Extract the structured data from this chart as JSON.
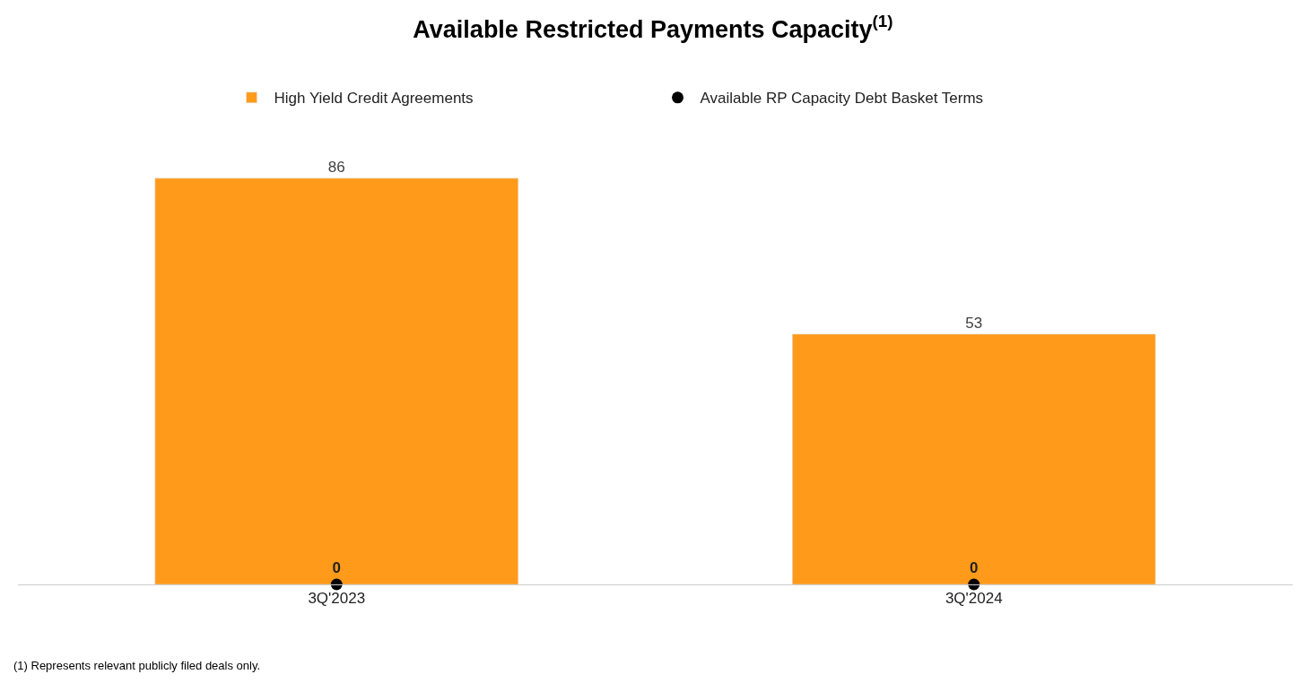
{
  "chart_data": {
    "type": "bar",
    "title": "Available Restricted Payments Capacity$^{(1)}$",
    "categories": [
      "3Q'2023",
      "3Q'2024"
    ],
    "series": [
      {
        "name": "High Yield Credit Agreements",
        "color": "#ff9a1a",
        "values": [
          86,
          53
        ]
      },
      {
        "name": "Available RP Capacity Debt Basket Terms",
        "type": "scatter",
        "color": "#000000",
        "values": [
          0,
          0
        ]
      }
    ],
    "data_labels": true,
    "legend": "top",
    "marker": "circle",
    "annotations": [
      "(1) Represents relevant publicly filed deals only."
    ]
  }
}
